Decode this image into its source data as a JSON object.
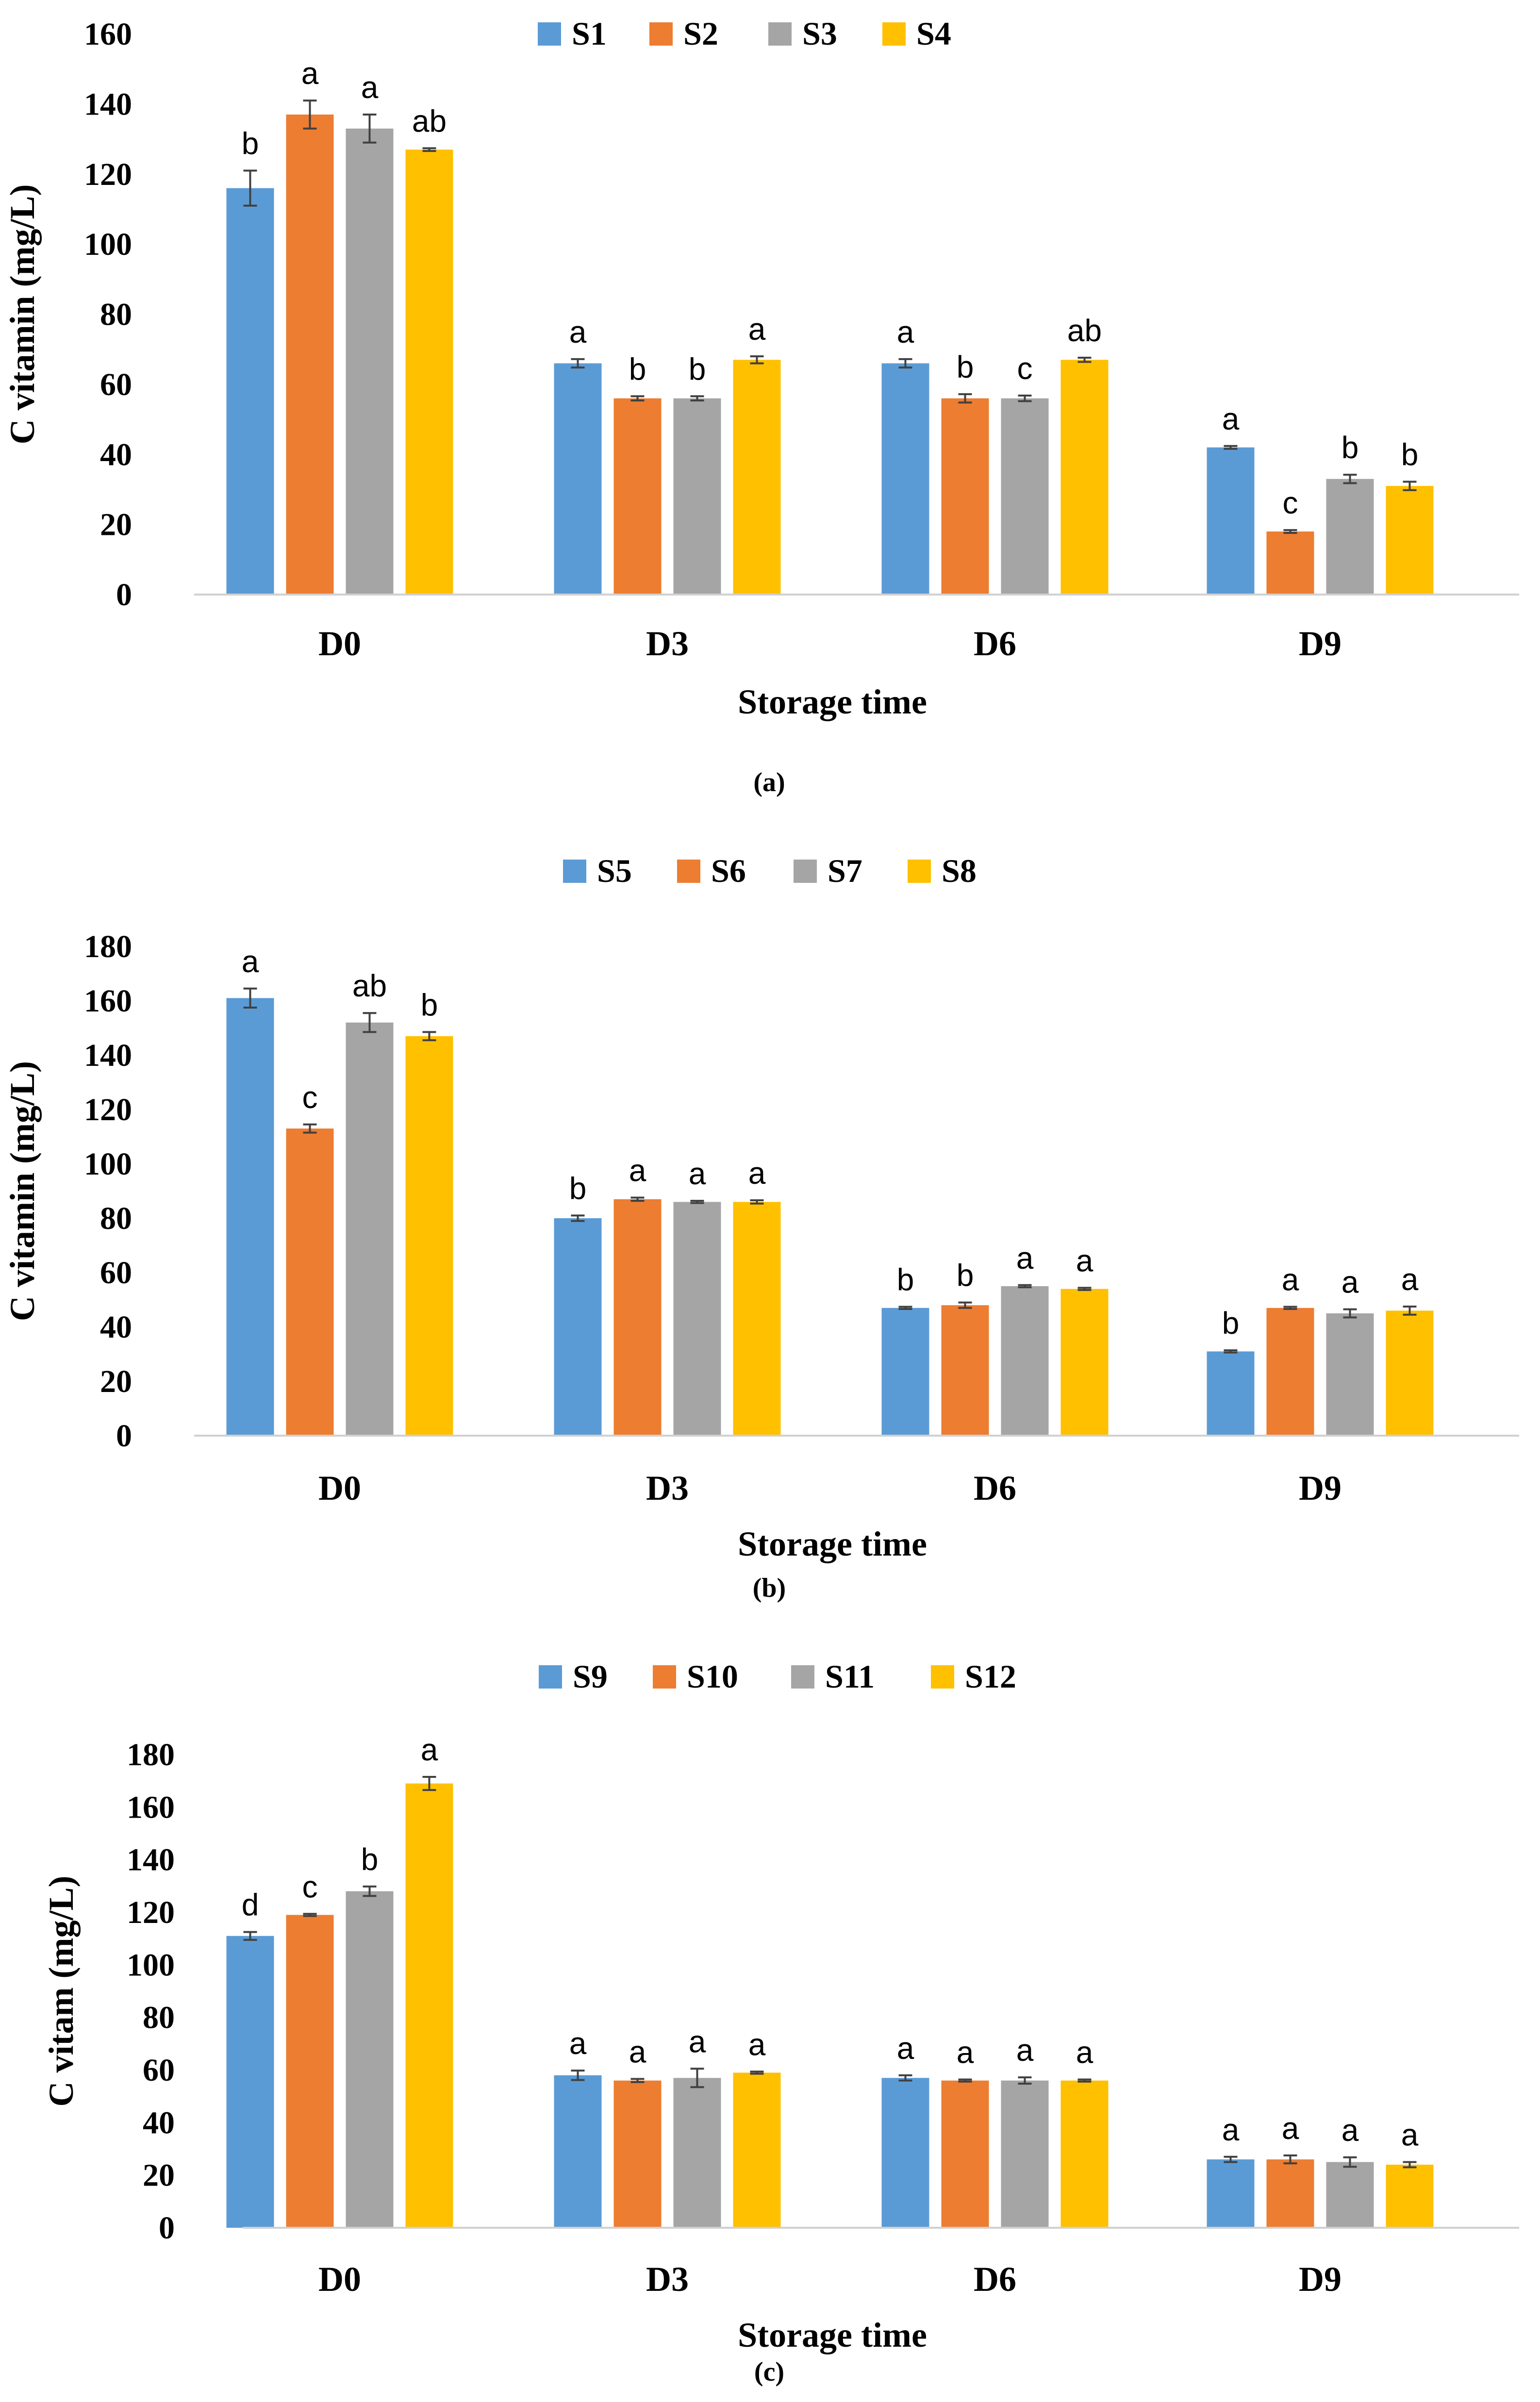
{
  "chart_data": [
    {
      "type": "bar",
      "caption": "(a)",
      "categories": [
        "D0",
        "D3",
        "D6",
        "D9"
      ],
      "xlabel": "Storage time",
      "ylabel": "C vitamin (mg/L)",
      "ylim": [
        0,
        160
      ],
      "yticks": [
        0,
        20,
        40,
        60,
        80,
        100,
        120,
        140,
        160
      ],
      "legend_position": "top",
      "grid": false,
      "series": [
        {
          "name": "S1",
          "color": "#5B9BD5",
          "values": [
            116,
            66,
            66,
            42
          ],
          "errors": [
            5,
            1.2,
            1.2,
            0.4
          ],
          "letters": [
            "b",
            "a",
            "a",
            "a"
          ]
        },
        {
          "name": "S2",
          "color": "#ED7D31",
          "values": [
            137,
            56,
            56,
            18
          ],
          "errors": [
            4,
            0.6,
            1.2,
            0.4
          ],
          "letters": [
            "a",
            "b",
            "b",
            "c"
          ]
        },
        {
          "name": "S3",
          "color": "#A5A5A5",
          "values": [
            133,
            56,
            56,
            33
          ],
          "errors": [
            4,
            0.6,
            0.8,
            1.2
          ],
          "letters": [
            "a",
            "b",
            "c",
            "b"
          ]
        },
        {
          "name": "S4",
          "color": "#FFC000",
          "values": [
            127,
            67,
            67,
            31
          ],
          "errors": [
            0.4,
            1,
            0.6,
            1.2
          ],
          "letters": [
            "ab",
            "a",
            "ab",
            "b"
          ]
        }
      ]
    },
    {
      "type": "bar",
      "caption": "(b)",
      "categories": [
        "D0",
        "D3",
        "D6",
        "D9"
      ],
      "xlabel": "Storage time",
      "ylabel": "C vitamin (mg/L)",
      "ylim": [
        0,
        180
      ],
      "yticks": [
        0,
        20,
        40,
        60,
        80,
        100,
        120,
        140,
        160,
        180
      ],
      "legend_position": "top",
      "grid": false,
      "series": [
        {
          "name": "S5",
          "color": "#5B9BD5",
          "values": [
            161,
            80,
            47,
            31
          ],
          "errors": [
            3.5,
            1,
            0.4,
            0.4
          ],
          "letters": [
            "a",
            "b",
            "b",
            "b"
          ]
        },
        {
          "name": "S6",
          "color": "#ED7D31",
          "values": [
            113,
            87,
            48,
            47
          ],
          "errors": [
            1.5,
            0.6,
            1,
            0.4
          ],
          "letters": [
            "c",
            "a",
            "b",
            "a"
          ]
        },
        {
          "name": "S7",
          "color": "#A5A5A5",
          "values": [
            152,
            86,
            55,
            45
          ],
          "errors": [
            3.5,
            0.4,
            0.4,
            1.5
          ],
          "letters": [
            "ab",
            "a",
            "a",
            "a"
          ]
        },
        {
          "name": "S8",
          "color": "#FFC000",
          "values": [
            147,
            86,
            54,
            46
          ],
          "errors": [
            1.5,
            0.6,
            0.4,
            1.5
          ],
          "letters": [
            "b",
            "a",
            "a",
            "a"
          ]
        }
      ]
    },
    {
      "type": "bar",
      "caption": "(c)",
      "categories": [
        "D0",
        "D3",
        "D6",
        "D9"
      ],
      "xlabel": "Storage time",
      "ylabel": "C vitam (mg/L)",
      "ylim": [
        0,
        180
      ],
      "yticks": [
        0,
        20,
        40,
        60,
        80,
        100,
        120,
        140,
        160,
        180
      ],
      "legend_position": "top",
      "grid": false,
      "series": [
        {
          "name": "S9",
          "color": "#5B9BD5",
          "values": [
            111,
            58,
            57,
            26
          ],
          "errors": [
            1.5,
            1.8,
            1,
            1
          ],
          "letters": [
            "d",
            "a",
            "a",
            "a"
          ]
        },
        {
          "name": "S10",
          "color": "#ED7D31",
          "values": [
            119,
            56,
            56,
            26
          ],
          "errors": [
            0.4,
            0.6,
            0.4,
            1.5
          ],
          "letters": [
            "c",
            "a",
            "a",
            "a"
          ]
        },
        {
          "name": "S11",
          "color": "#A5A5A5",
          "values": [
            128,
            57,
            56,
            25
          ],
          "errors": [
            1.8,
            3.5,
            1.2,
            1.8
          ],
          "letters": [
            "b",
            "a",
            "a",
            "a"
          ]
        },
        {
          "name": "S12",
          "color": "#FFC000",
          "values": [
            169,
            59,
            56,
            24
          ],
          "errors": [
            2.5,
            0.4,
            0.4,
            1
          ],
          "letters": [
            "a",
            "a",
            "a",
            "a"
          ]
        }
      ]
    }
  ]
}
